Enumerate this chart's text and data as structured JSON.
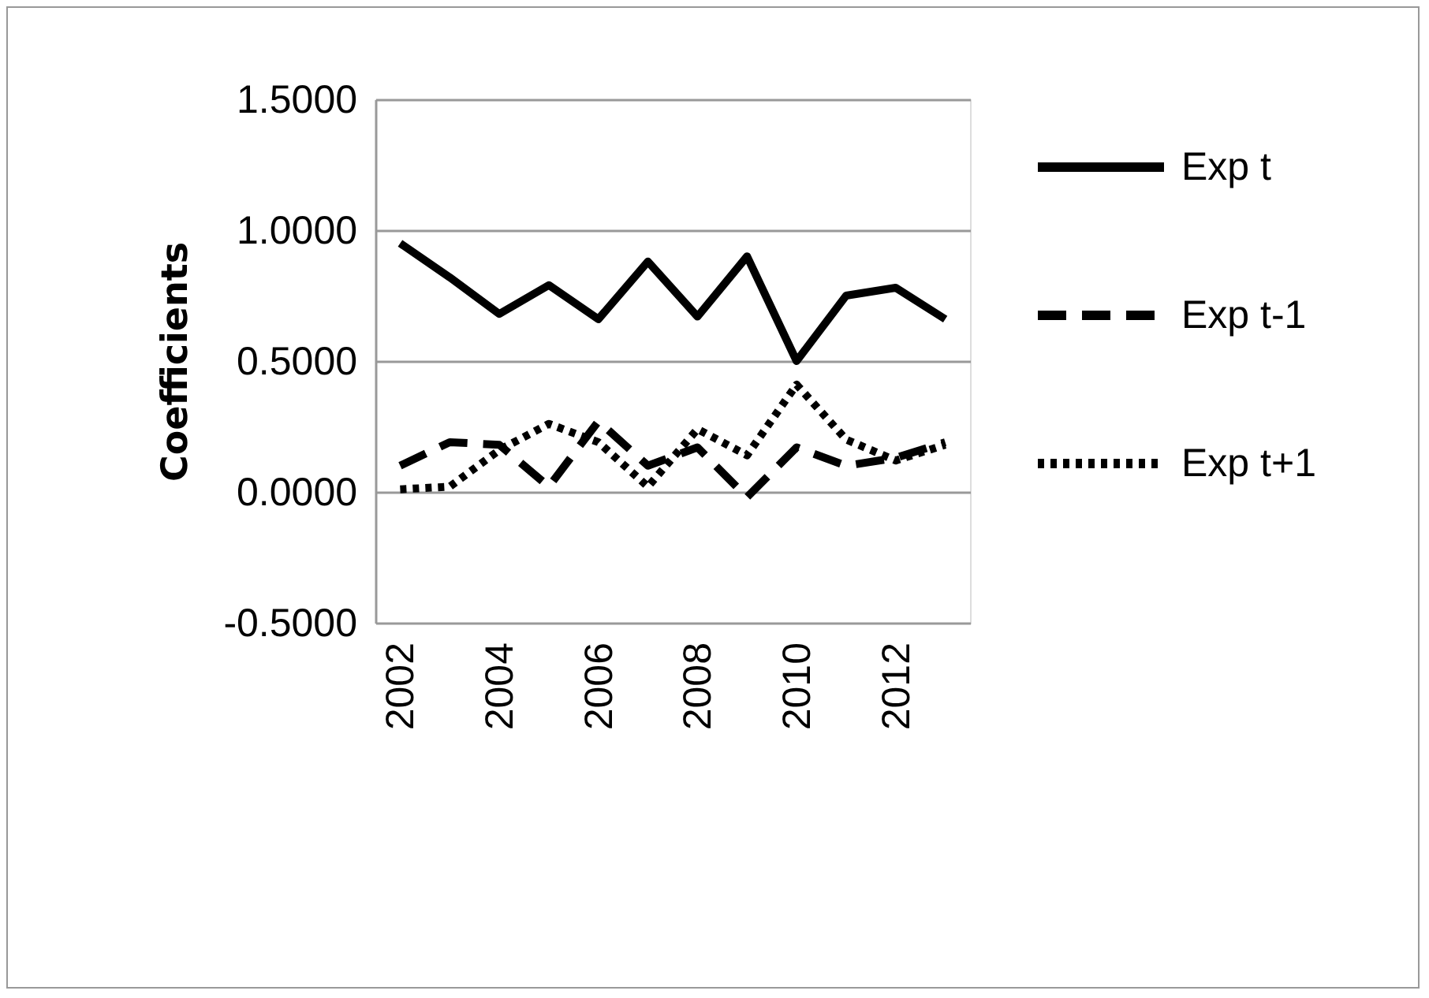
{
  "chart_data": {
    "type": "line",
    "ylabel": "Coefficients",
    "x": [
      2002,
      2003,
      2004,
      2005,
      2006,
      2007,
      2008,
      2009,
      2010,
      2011,
      2012,
      2013
    ],
    "xlim": [
      2001.5,
      2013.5
    ],
    "xticks": [
      2002,
      2004,
      2006,
      2008,
      2010,
      2012
    ],
    "ylim": [
      -0.5,
      1.5
    ],
    "yticks": [
      {
        "value": -0.5,
        "label": "-0.5000"
      },
      {
        "value": 0,
        "label": "0.0000"
      },
      {
        "value": 0.5,
        "label": "0.5000"
      },
      {
        "value": 1,
        "label": "1.0000"
      },
      {
        "value": 1.5,
        "label": "1.5000"
      }
    ],
    "grid": "y",
    "legend": "right",
    "series": [
      {
        "name": "Exp t",
        "color": "#000000",
        "line_style": "solid",
        "values": [
          0.95,
          0.82,
          0.68,
          0.79,
          0.66,
          0.88,
          0.67,
          0.9,
          0.5,
          0.75,
          0.78,
          0.66
        ]
      },
      {
        "name": "Exp t-1",
        "color": "#000000",
        "line_style": "dashed",
        "values": [
          0.1,
          0.19,
          0.18,
          0.02,
          0.27,
          0.1,
          0.17,
          -0.02,
          0.17,
          0.1,
          0.13,
          0.19
        ]
      },
      {
        "name": "Exp t+1",
        "color": "#000000",
        "line_style": "dotted",
        "values": [
          0.01,
          0.02,
          0.16,
          0.26,
          0.19,
          0.02,
          0.24,
          0.14,
          0.41,
          0.2,
          0.12,
          0.18
        ]
      }
    ]
  }
}
